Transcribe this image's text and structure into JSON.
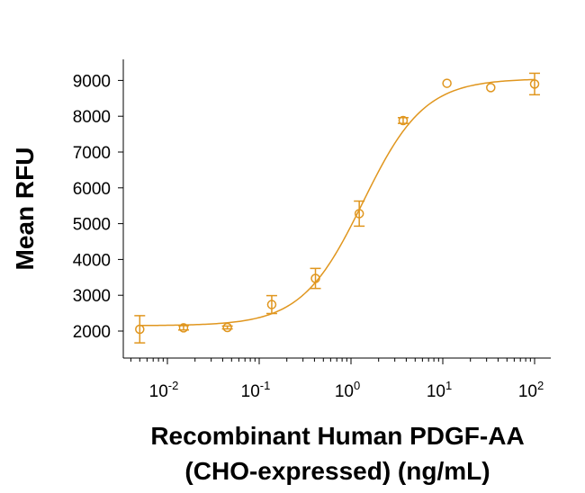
{
  "chart_data": {
    "type": "scatter",
    "title": "",
    "xlabel_line1": "Recombinant Human PDGF-AA",
    "xlabel_line2": "(CHO-expressed) (ng/mL)",
    "ylabel": "Mean RFU",
    "xscale": "log",
    "xlim": [
      0.004,
      150
    ],
    "ylim": [
      1500,
      9500
    ],
    "x_ticks": [
      {
        "value": 0.01,
        "base": "10",
        "exp": "-2"
      },
      {
        "value": 0.1,
        "base": "10",
        "exp": "-1"
      },
      {
        "value": 1,
        "base": "10",
        "exp": "0"
      },
      {
        "value": 10,
        "base": "10",
        "exp": "1"
      },
      {
        "value": 100,
        "base": "10",
        "exp": "2"
      }
    ],
    "y_ticks": [
      2000,
      3000,
      4000,
      5000,
      6000,
      7000,
      8000,
      9000
    ],
    "y_tick_labels": [
      "2000",
      "3000",
      "4000",
      "5000",
      "6000",
      "7000",
      "8000",
      "9000"
    ],
    "color": "#E0961E",
    "series": [
      {
        "name": "PDGF-AA",
        "x": [
          0.005,
          0.015,
          0.045,
          0.137,
          0.41,
          1.23,
          3.7,
          11.1,
          33.3,
          100
        ],
        "y": [
          2050,
          2090,
          2100,
          2740,
          3470,
          5280,
          7880,
          8920,
          8800,
          8900
        ],
        "err": [
          380,
          60,
          40,
          250,
          280,
          350,
          80,
          0,
          0,
          300
        ]
      }
    ],
    "fit": {
      "type": "4PL",
      "bottom": 2150,
      "top": 9050,
      "ec50": 1.35,
      "hill": 1.3
    }
  }
}
